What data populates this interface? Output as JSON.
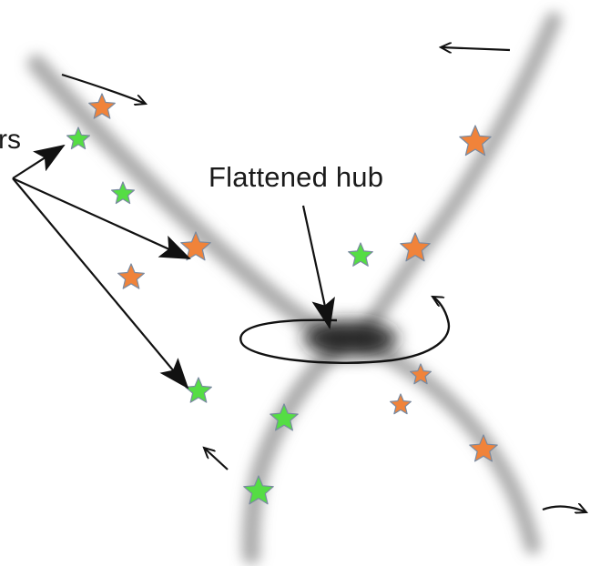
{
  "labels": {
    "hub": "Flattened hub",
    "stars_fragment": "rs"
  },
  "colors": {
    "orange_star": "#f0833a",
    "green_star": "#55dd44",
    "star_outline": "#7a8aa0",
    "filament": "#9a9a9a",
    "hub": "#2a2a2a",
    "ink": "#111111"
  },
  "legend": {
    "orange": "orange-star",
    "green": "green-star"
  }
}
